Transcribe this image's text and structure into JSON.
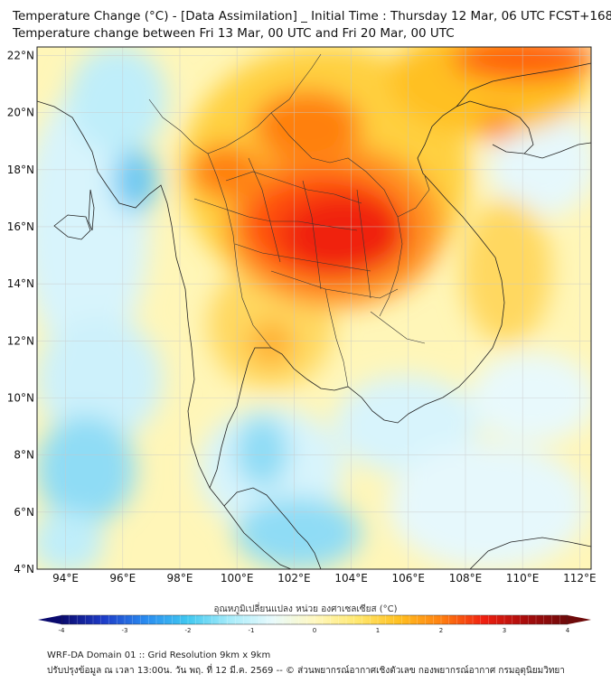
{
  "title": {
    "line1": "Temperature Change (°C) - [Data Assimilation] _ Initial Time : Thursday 12 Mar, 06 UTC FCST+168",
    "line2": "Temperature change between Fri 13 Mar, 00 UTC and Fri 20 Mar, 00 UTC"
  },
  "map": {
    "lat_range": [
      4,
      22.3
    ],
    "lon_range": [
      93,
      112.4
    ],
    "lat_labels": [
      {
        "value": 22,
        "text": "22°N"
      },
      {
        "value": 20,
        "text": "20°N"
      },
      {
        "value": 18,
        "text": "18°N"
      },
      {
        "value": 16,
        "text": "16°N"
      },
      {
        "value": 14,
        "text": "14°N"
      },
      {
        "value": 12,
        "text": "12°N"
      },
      {
        "value": 10,
        "text": "10°N"
      },
      {
        "value": 8,
        "text": "8°N"
      },
      {
        "value": 6,
        "text": "6°N"
      },
      {
        "value": 4,
        "text": "4°N"
      }
    ],
    "lon_labels": [
      {
        "value": 94,
        "text": "94°E"
      },
      {
        "value": 96,
        "text": "96°E"
      },
      {
        "value": 98,
        "text": "98°E"
      },
      {
        "value": 100,
        "text": "100°E"
      },
      {
        "value": 102,
        "text": "102°E"
      },
      {
        "value": 104,
        "text": "104°E"
      },
      {
        "value": 106,
        "text": "106°E"
      },
      {
        "value": 108,
        "text": "108°E"
      },
      {
        "value": 110,
        "text": "110°E"
      },
      {
        "value": 112,
        "text": "112°E"
      }
    ]
  },
  "colorbar": {
    "title": "อุณหภูมิเปลี่ยนแปลง หน่วย องศาเซลเซียส (°C)",
    "min": -4,
    "max": 4,
    "ticks": [
      {
        "value": -4,
        "text": "-4"
      },
      {
        "value": -3,
        "text": "-3"
      },
      {
        "value": -2,
        "text": "-2"
      },
      {
        "value": -1,
        "text": "-1"
      },
      {
        "value": 0,
        "text": "0"
      },
      {
        "value": 1,
        "text": "1"
      },
      {
        "value": 2,
        "text": "2"
      },
      {
        "value": 3,
        "text": "3"
      },
      {
        "value": 4,
        "text": "4"
      }
    ],
    "colors": [
      "#0a0a6e",
      "#1e3cc8",
      "#2a8cf0",
      "#40c8f0",
      "#a8ecfa",
      "#e8fafc",
      "#fff8c0",
      "#ffe870",
      "#ffc020",
      "#ff8010",
      "#f02010",
      "#a80c0c",
      "#6e0a0a"
    ]
  },
  "footer": {
    "line1": "WRF-DA Domain 01 :: Grid Resolution 9km x 9km",
    "line2": "ปรับปรุงข้อมูล ณ เวลา 13:00น. วัน พฤ. ที่ 12 มี.ค. 2569 -- © ส่วนพยากรณ์อากาศเชิงตัวเลข กองพยากรณ์อากาศ กรมอุตุนิยมวิทยา"
  }
}
